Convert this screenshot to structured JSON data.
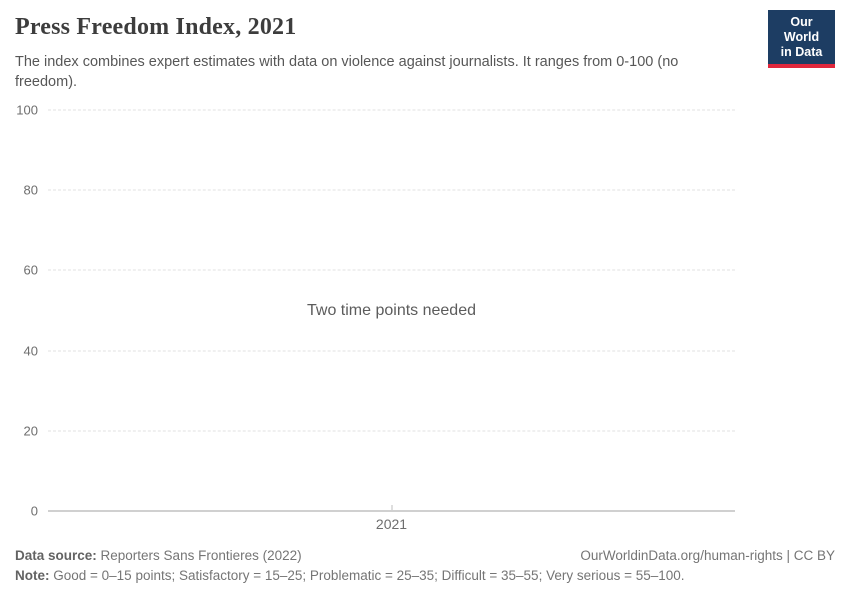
{
  "header": {
    "title": "Press Freedom Index, 2021",
    "subtitle": "The index combines expert estimates with data on violence against journalists. It ranges from 0-100 (no freedom).",
    "logo": {
      "line1": "Our World",
      "line2": "in Data"
    }
  },
  "chart_data": {
    "type": "line",
    "title": "Press Freedom Index, 2021",
    "empty_state_message": "Two time points needed",
    "series": [],
    "x_ticks": [
      "2021"
    ],
    "y_ticks": [
      0,
      20,
      40,
      60,
      80,
      100
    ],
    "ylim": [
      0,
      100
    ],
    "xlabel": "",
    "ylabel": "",
    "grid": "horizontal dashed gridlines, solid baseline at 0",
    "legend": "none"
  },
  "footer": {
    "datasource_label": "Data source:",
    "datasource_value": " Reporters Sans Frontieres (2022)",
    "link": "OurWorldinData.org/human-rights | CC BY",
    "note_label": "Note:",
    "note_value": " Good = 0–15 points; Satisfactory = 15–25; Problematic = 25–35; Difficult = 35–55; Very serious = 55–100."
  },
  "colors": {
    "logo_background": "#1d3d63",
    "logo_accent_red": "#e0273c",
    "title_text": "#3d3d3d",
    "subtitle_text": "#575757",
    "tick_text": "#6e6e6e",
    "gridline": "#e2e2e2",
    "axis_baseline": "#a1a1a1",
    "footer_text": "#757575"
  }
}
